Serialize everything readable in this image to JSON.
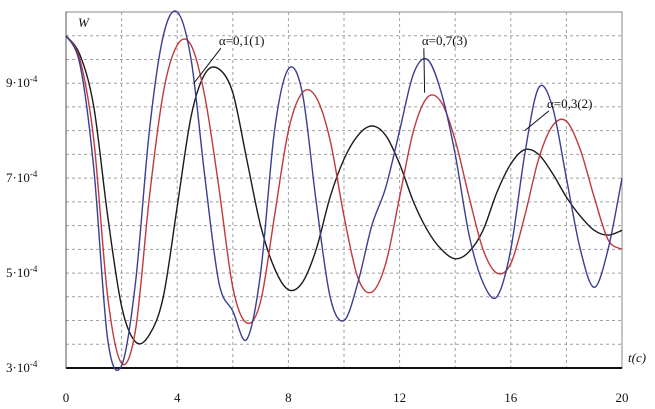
{
  "chart_data": {
    "type": "line",
    "title": "",
    "xlabel": "t(c)",
    "ylabel": "W",
    "xlim": [
      0,
      20
    ],
    "ylim": [
      0.0003,
      0.00105
    ],
    "grid": true,
    "x_ticks": [
      0,
      4,
      8,
      12,
      16,
      20
    ],
    "x_tick_labels": [
      "0",
      "4",
      "8",
      "12",
      "16",
      "20"
    ],
    "y_ticks": [
      0.0003,
      0.0005,
      0.0007,
      0.0009
    ],
    "y_tick_labels": [
      {
        "mant": "3·10",
        "exp": "-4"
      },
      {
        "mant": "5·10",
        "exp": "-4"
      },
      {
        "mant": "7·10",
        "exp": "-4"
      },
      {
        "mant": "9·10",
        "exp": "-4"
      }
    ],
    "annotations": [
      {
        "text": "α=0,1(1)",
        "x": 5.5,
        "y": 0.00098,
        "arrow_to": [
          4.6,
          0.0009
        ]
      },
      {
        "text": "α=0,7(3)",
        "x": 12.8,
        "y": 0.00098,
        "arrow_to": [
          12.9,
          0.00088
        ]
      },
      {
        "text": "α=0,3(2)",
        "x": 17.3,
        "y": 0.000848,
        "arrow_to": [
          16.5,
          0.0008
        ]
      }
    ],
    "series": [
      {
        "color": "#1a1a1a",
        "x": [
          0,
          0.5,
          1.0,
          1.5,
          2.0,
          2.5,
          3.0,
          3.5,
          4.0,
          4.5,
          5.0,
          5.5,
          6.0,
          6.5,
          7.0,
          7.5,
          8.0,
          8.5,
          9.0,
          9.5,
          10.0,
          10.5,
          11.0,
          11.5,
          12.0,
          12.5,
          13.0,
          13.5,
          14.0,
          14.5,
          15.0,
          15.5,
          16.0,
          16.5,
          17.0,
          17.5,
          18.0,
          18.5,
          19.0,
          19.5,
          20.0
        ],
        "values": [
          0.001,
          0.00096,
          0.00085,
          0.00062,
          0.00043,
          0.000355,
          0.00037,
          0.00045,
          0.00064,
          0.00083,
          0.00092,
          0.00093,
          0.00088,
          0.00074,
          0.0006,
          0.00051,
          0.000465,
          0.00048,
          0.00055,
          0.00066,
          0.00074,
          0.00079,
          0.00081,
          0.00079,
          0.00073,
          0.00065,
          0.00059,
          0.00055,
          0.00053,
          0.000545,
          0.00059,
          0.00067,
          0.00073,
          0.00076,
          0.00075,
          0.00071,
          0.00066,
          0.00062,
          0.00059,
          0.00058,
          0.00059
        ]
      },
      {
        "color": "#c0393b",
        "x": [
          0,
          0.5,
          1.0,
          1.5,
          2.0,
          2.5,
          3.0,
          3.5,
          4.0,
          4.5,
          5.0,
          5.5,
          6.0,
          6.5,
          7.0,
          7.5,
          8.0,
          8.5,
          9.0,
          9.5,
          10.0,
          10.5,
          11.0,
          11.5,
          12.0,
          12.5,
          13.0,
          13.5,
          14.0,
          14.5,
          15.0,
          15.5,
          16.0,
          16.5,
          17.0,
          17.5,
          18.0,
          18.5,
          19.0,
          19.5,
          20.0
        ],
        "values": [
          0.001,
          0.00095,
          0.00078,
          0.00045,
          0.00031,
          0.00038,
          0.00066,
          0.00088,
          0.00098,
          0.00098,
          0.00087,
          0.00068,
          0.00047,
          0.000395,
          0.00044,
          0.00062,
          0.0008,
          0.00088,
          0.00087,
          0.00078,
          0.00062,
          0.00049,
          0.00046,
          0.00052,
          0.00066,
          0.0008,
          0.00087,
          0.00086,
          0.00078,
          0.00066,
          0.00055,
          0.0005,
          0.00052,
          0.00062,
          0.00074,
          0.00081,
          0.00082,
          0.00076,
          0.00066,
          0.00057,
          0.00055
        ]
      },
      {
        "color": "#3a3f8f",
        "x": [
          0,
          0.5,
          1.0,
          1.5,
          2.0,
          2.5,
          3.0,
          3.5,
          4.0,
          4.5,
          5.0,
          5.5,
          6.0,
          6.5,
          7.0,
          7.5,
          8.0,
          8.5,
          9.0,
          9.5,
          10.0,
          10.5,
          11.0,
          11.5,
          12.0,
          12.5,
          13.0,
          13.5,
          14.0,
          14.5,
          15.0,
          15.5,
          16.0,
          16.5,
          17.0,
          17.5,
          18.0,
          18.5,
          19.0,
          19.5,
          20.0
        ],
        "values": [
          0.001,
          0.00094,
          0.00072,
          0.00036,
          0.000305,
          0.00048,
          0.0008,
          0.001,
          0.00105,
          0.00095,
          0.0007,
          0.00048,
          0.00042,
          0.00036,
          0.0005,
          0.0008,
          0.00093,
          0.00088,
          0.00065,
          0.00045,
          0.0004,
          0.00048,
          0.0006,
          0.00068,
          0.0008,
          0.00092,
          0.00095,
          0.00088,
          0.00075,
          0.00058,
          0.00048,
          0.00045,
          0.00055,
          0.00075,
          0.00089,
          0.00085,
          0.0007,
          0.00055,
          0.00047,
          0.00055,
          0.0007
        ]
      }
    ]
  }
}
